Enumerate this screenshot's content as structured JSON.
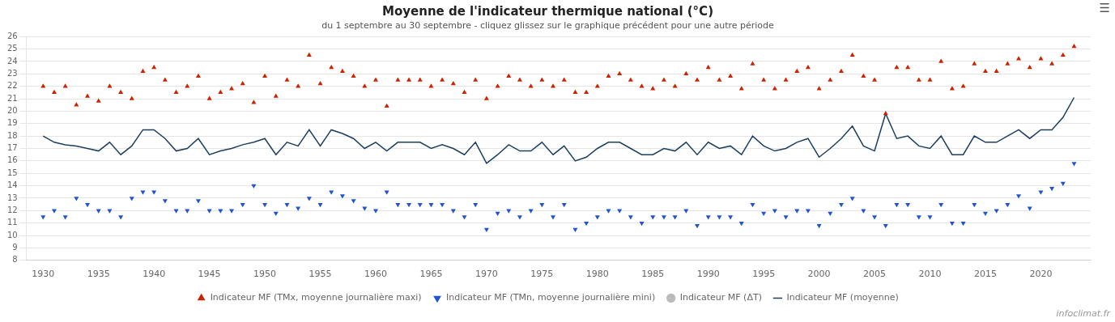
{
  "chart_data": {
    "type": "line",
    "title": "Moyenne de l'indicateur thermique national (°C)",
    "subtitle": "du 1 septembre au 30 septembre - cliquez glissez sur le graphique précédent pour une autre période",
    "annotations": [
      "infoclimat.fr",
      "☰"
    ],
    "x": [
      1930,
      1931,
      1932,
      1933,
      1934,
      1935,
      1936,
      1937,
      1938,
      1939,
      1940,
      1941,
      1942,
      1943,
      1944,
      1945,
      1946,
      1947,
      1948,
      1949,
      1950,
      1951,
      1952,
      1953,
      1954,
      1955,
      1956,
      1957,
      1958,
      1959,
      1960,
      1961,
      1962,
      1963,
      1964,
      1965,
      1966,
      1967,
      1968,
      1969,
      1970,
      1971,
      1972,
      1973,
      1974,
      1975,
      1976,
      1977,
      1978,
      1979,
      1980,
      1981,
      1982,
      1983,
      1984,
      1985,
      1986,
      1987,
      1988,
      1989,
      1990,
      1991,
      1992,
      1993,
      1994,
      1995,
      1996,
      1997,
      1998,
      1999,
      2000,
      2001,
      2002,
      2003,
      2004,
      2005,
      2006,
      2007,
      2008,
      2009,
      2010,
      2011,
      2012,
      2013,
      2014,
      2015,
      2016,
      2017,
      2018,
      2019,
      2020,
      2021,
      2022,
      2023
    ],
    "series": [
      {
        "name": "Indicateur MF (moyenne)",
        "type": "line",
        "color": "#1c3f5e",
        "line_style": "solid",
        "values": [
          18.0,
          17.5,
          17.3,
          17.2,
          17.0,
          16.8,
          17.5,
          16.5,
          17.2,
          18.5,
          18.5,
          17.8,
          16.8,
          17.0,
          17.8,
          16.5,
          16.8,
          17.0,
          17.3,
          17.5,
          17.8,
          16.5,
          17.5,
          17.2,
          18.5,
          17.2,
          18.5,
          18.2,
          17.8,
          17.0,
          17.5,
          16.8,
          17.5,
          17.5,
          17.5,
          17.0,
          17.3,
          17.0,
          16.5,
          17.5,
          15.8,
          16.5,
          17.3,
          16.8,
          16.8,
          17.5,
          16.5,
          17.2,
          16.0,
          16.3,
          17.0,
          17.5,
          17.5,
          17.0,
          16.5,
          16.5,
          17.0,
          16.8,
          17.5,
          16.5,
          17.5,
          17.0,
          17.2,
          16.5,
          18.0,
          17.2,
          16.8,
          17.0,
          17.5,
          17.8,
          16.3,
          17.0,
          17.8,
          18.8,
          17.2,
          16.8,
          19.8,
          17.8,
          18.0,
          17.2,
          17.0,
          18.0,
          16.5,
          16.5,
          18.0,
          17.5,
          17.5,
          18.0,
          18.5,
          17.8,
          18.5,
          18.5,
          19.5,
          21.1
        ]
      },
      {
        "name": "Indicateur MF (TMx, moyenne journalière maxi)",
        "type": "scatter",
        "color": "#cc2200",
        "marker": "triangle-up",
        "values": [
          22.0,
          21.5,
          22.0,
          20.5,
          21.2,
          20.8,
          22.0,
          21.5,
          21.0,
          23.2,
          23.5,
          22.5,
          21.5,
          22.0,
          22.8,
          21.0,
          21.5,
          21.8,
          22.2,
          20.7,
          22.8,
          21.2,
          22.5,
          22.0,
          24.5,
          22.2,
          23.5,
          23.2,
          22.8,
          22.0,
          22.5,
          20.4,
          22.5,
          22.5,
          22.5,
          22.0,
          22.5,
          22.2,
          21.5,
          22.5,
          21.0,
          22.0,
          22.8,
          22.5,
          22.0,
          22.5,
          22.0,
          22.5,
          21.5,
          21.5,
          22.0,
          22.8,
          23.0,
          22.5,
          22.0,
          21.8,
          22.5,
          22.0,
          23.0,
          22.5,
          23.5,
          22.5,
          22.8,
          21.8,
          23.8,
          22.5,
          21.8,
          22.5,
          23.2,
          23.5,
          21.8,
          22.5,
          23.2,
          24.5,
          22.8,
          22.5,
          19.8,
          23.5,
          23.5,
          22.5,
          22.5,
          24.0,
          21.8,
          22.0,
          23.8,
          23.2,
          23.2,
          23.8,
          24.2,
          23.5,
          24.2,
          23.8,
          24.5,
          25.2
        ]
      },
      {
        "name": "Indicateur MF (TMn, moyenne journalière mini)",
        "type": "scatter",
        "color": "#2255cc",
        "marker": "triangle-down",
        "values": [
          11.5,
          12.0,
          11.5,
          13.0,
          12.5,
          12.0,
          12.0,
          11.5,
          13.0,
          13.5,
          13.5,
          12.8,
          12.0,
          12.0,
          12.8,
          12.0,
          12.0,
          12.0,
          12.5,
          14.0,
          12.5,
          11.8,
          12.5,
          12.2,
          13.0,
          12.5,
          13.5,
          13.2,
          12.8,
          12.2,
          12.0,
          13.5,
          12.5,
          12.5,
          12.5,
          12.5,
          12.5,
          12.0,
          11.5,
          12.5,
          10.5,
          11.8,
          12.0,
          11.5,
          12.0,
          12.5,
          11.5,
          12.5,
          10.5,
          11.0,
          11.5,
          12.0,
          12.0,
          11.5,
          11.0,
          11.5,
          11.5,
          11.5,
          12.0,
          10.8,
          11.5,
          11.5,
          11.5,
          11.0,
          12.5,
          11.8,
          12.0,
          11.5,
          12.0,
          12.0,
          10.8,
          11.8,
          12.5,
          13.0,
          12.0,
          11.5,
          10.8,
          12.5,
          12.5,
          11.5,
          11.5,
          12.5,
          11.0,
          11.0,
          12.5,
          11.8,
          12.0,
          12.5,
          13.2,
          12.2,
          13.5,
          13.8,
          14.2,
          15.8
        ]
      },
      {
        "name": "Indicateur MF (ΔT)",
        "type": "scatter",
        "color": "#bbbbbb",
        "marker": "circle",
        "values": [
          null,
          null,
          null,
          null,
          null,
          null,
          null,
          null,
          null,
          null,
          null,
          null,
          null,
          null,
          null,
          null,
          null,
          null,
          null,
          null,
          null,
          null,
          null,
          null,
          null,
          null,
          null,
          null,
          null,
          null,
          null,
          null,
          null,
          null,
          null,
          null,
          null,
          null,
          null,
          null,
          null,
          null,
          null,
          null,
          null,
          null,
          null,
          null,
          null,
          null,
          null,
          null,
          null,
          null,
          null,
          null,
          null,
          null,
          null,
          null,
          null,
          null,
          null,
          null,
          null,
          null,
          null,
          null,
          null,
          null,
          null,
          null,
          null,
          null,
          null,
          null,
          null,
          null,
          null,
          null,
          null,
          null,
          null,
          null,
          null,
          null,
          null,
          null,
          null,
          null,
          null,
          null,
          null,
          null
        ]
      }
    ],
    "xlim": [
      1928.5,
      2024.5
    ],
    "xticks": [
      1930,
      1935,
      1940,
      1945,
      1950,
      1955,
      1960,
      1965,
      1970,
      1975,
      1980,
      1985,
      1990,
      1995,
      2000,
      2005,
      2010,
      2015,
      2020
    ],
    "ylim": [
      8,
      26
    ],
    "yticks": [
      8,
      9,
      10,
      11,
      12,
      13,
      14,
      15,
      16,
      17,
      18,
      19,
      20,
      21,
      22,
      23,
      24,
      25,
      26
    ],
    "grid": "y",
    "legend": "bottom"
  }
}
